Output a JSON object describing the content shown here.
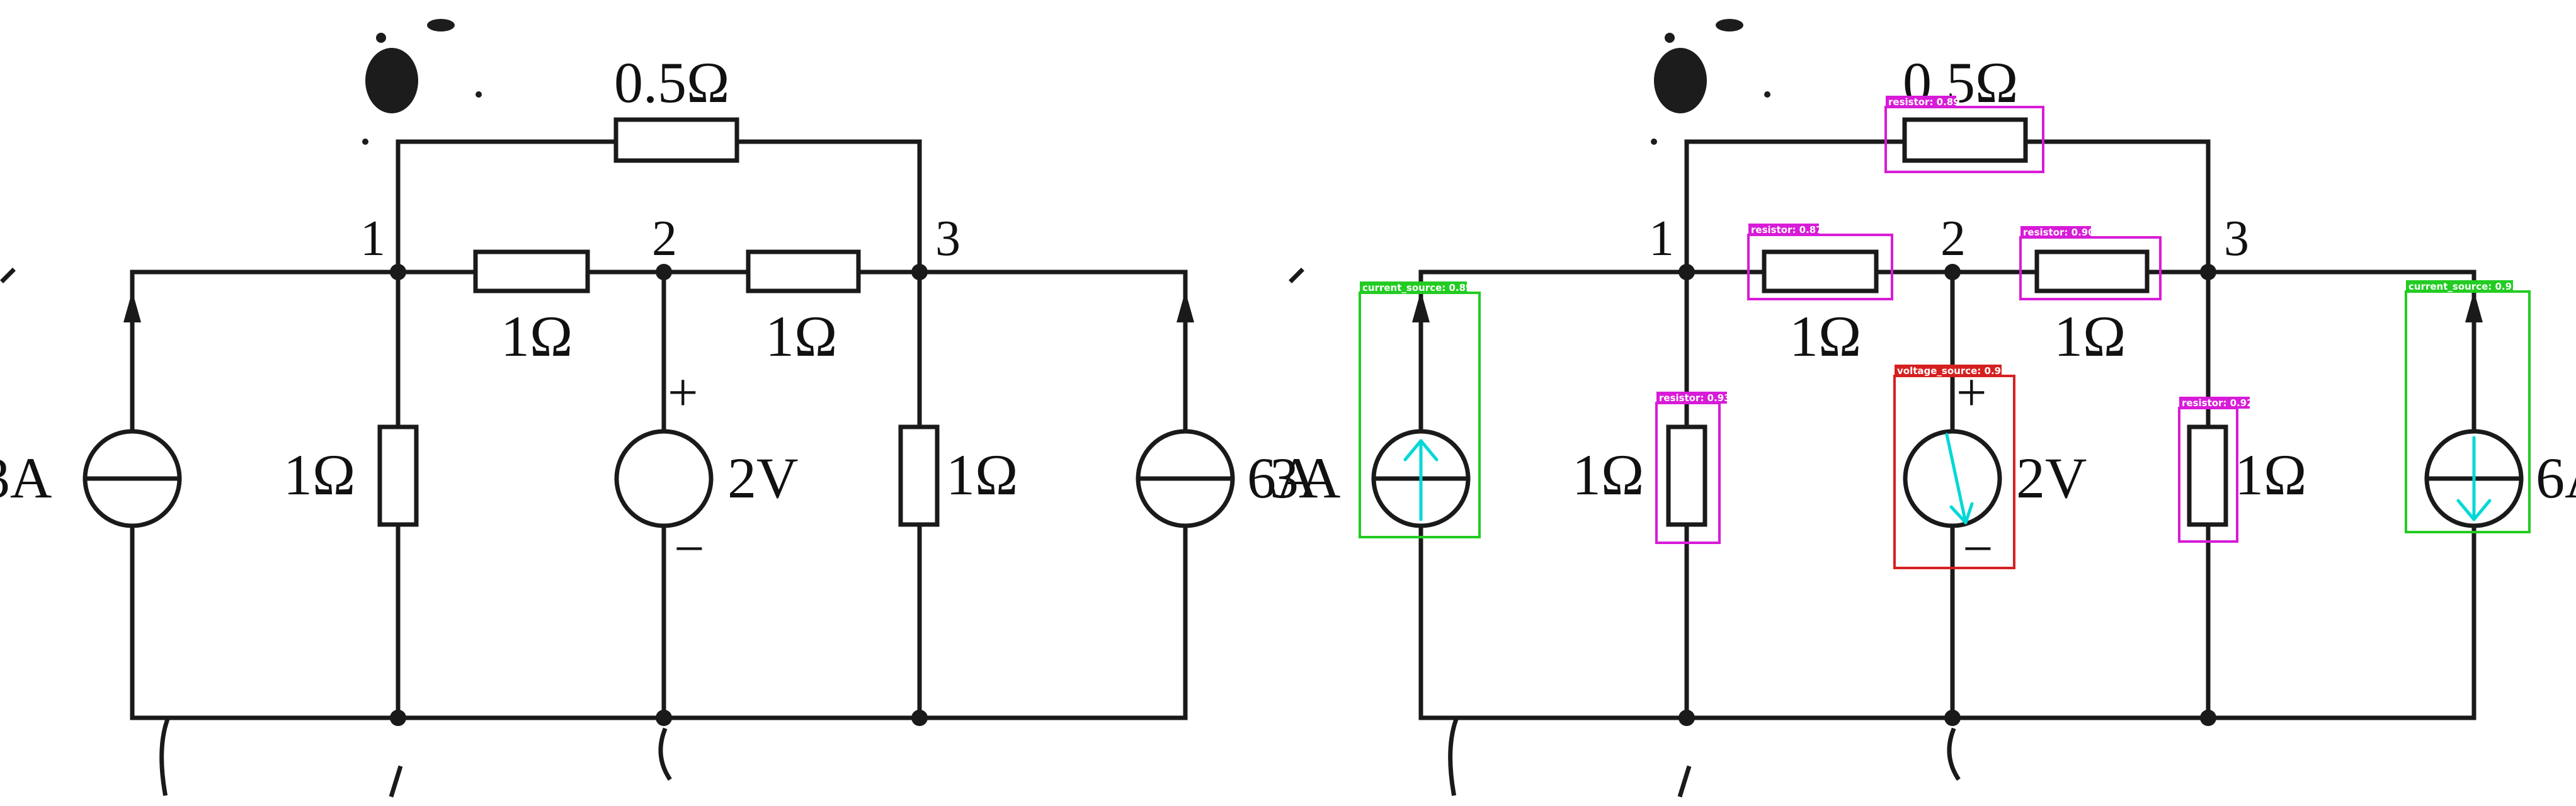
{
  "diagram": {
    "labels": {
      "r_top": "0.5Ω",
      "r_12": "1Ω",
      "r_23": "1Ω",
      "r_1g": "1Ω",
      "r_3g": "1Ω",
      "v_src": "2V",
      "i_left": "3A",
      "i_right": "6A",
      "plus": "+",
      "minus": "−",
      "node_1": "1",
      "node_2": "2",
      "node_3": "3"
    },
    "detections": [
      {
        "label": "resistor: 0.89",
        "color": "#d81bd8"
      },
      {
        "label": "resistor: 0.87",
        "color": "#d81bd8"
      },
      {
        "label": "resistor: 0.90",
        "color": "#d81bd8"
      },
      {
        "label": "resistor: 0.93",
        "color": "#d81bd8"
      },
      {
        "label": "resistor: 0.92",
        "color": "#d81bd8"
      },
      {
        "label": "voltage_source: 0.92",
        "color": "#d62020"
      },
      {
        "label": "current_source: 0.89",
        "color": "#22cc22"
      },
      {
        "label": "current_source: 0.91",
        "color": "#22cc22"
      }
    ],
    "arrow_color": "#00d8d8"
  }
}
